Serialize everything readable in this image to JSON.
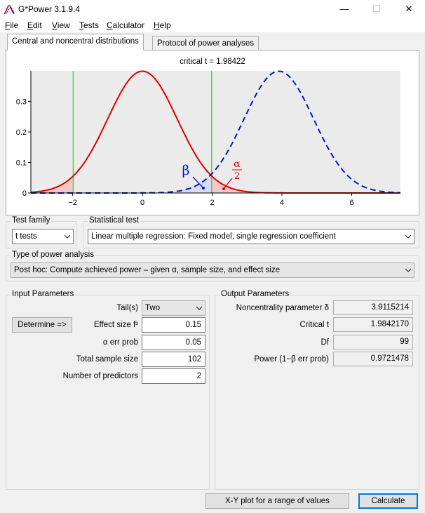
{
  "window": {
    "title": "G*Power 3.1.9.4",
    "minimize": "—",
    "maximize": "☐",
    "close": "✕"
  },
  "menu": [
    {
      "mn": "F",
      "rest": "ile"
    },
    {
      "mn": "E",
      "rest": "dit"
    },
    {
      "mn": "V",
      "rest": "iew"
    },
    {
      "mn": "T",
      "rest": "ests"
    },
    {
      "mn": "C",
      "rest": "alculator"
    },
    {
      "mn": "H",
      "rest": "elp"
    }
  ],
  "tabs": {
    "distributions": "Central and noncentral distributions",
    "protocol": "Protocol of power analyses"
  },
  "plot": {
    "critical_label": "critical t = 1.98422",
    "critical_t": 1.98422,
    "noncentrality": 3.9115214,
    "df": 99,
    "beta_symbol": "β",
    "alpha_symbol": "α",
    "alpha_denominator": "2",
    "x_range": [
      -3.2,
      7.4
    ],
    "y_range": [
      0,
      0.4
    ],
    "x_ticks": [
      "−2",
      "0",
      "2",
      "4",
      "6"
    ],
    "x_tick_values": [
      -2,
      0,
      2,
      4,
      6
    ],
    "y_ticks": [
      "0",
      "0.1",
      "0.2",
      "0.3"
    ],
    "y_tick_values": [
      0,
      0.1,
      0.2,
      0.3
    ],
    "central_color": "#e00000",
    "noncentral_color": "#0018c8",
    "critical_color": "#3cdc3c"
  },
  "test_family": {
    "label": "Test family",
    "value": "t tests"
  },
  "statistical_test": {
    "label": "Statistical test",
    "value": "Linear multiple regression: Fixed model, single regression coefficient"
  },
  "power_analysis": {
    "label": "Type of power analysis",
    "value": "Post hoc: Compute achieved power – given α, sample size, and effect size"
  },
  "input": {
    "label": "Input Parameters",
    "determine": "Determine =>",
    "tails_label": "Tail(s)",
    "tails_value": "Two",
    "effect_label": "Effect size f²",
    "effect_value": "0.15",
    "alpha_label": "α err prob",
    "alpha_value": "0.05",
    "n_label": "Total sample size",
    "n_value": "102",
    "pred_label": "Number of predictors",
    "pred_value": "2"
  },
  "output": {
    "label": "Output Parameters",
    "nc_label": "Noncentrality parameter δ",
    "nc_value": "3.9115214",
    "crit_label": "Critical t",
    "crit_value": "1.9842170",
    "df_label": "Df",
    "df_value": "99",
    "power_label": "Power (1−β err prob)",
    "power_value": "0.9721478"
  },
  "buttons": {
    "xy_plot": "X-Y plot for a range of values",
    "calculate": "Calculate"
  }
}
